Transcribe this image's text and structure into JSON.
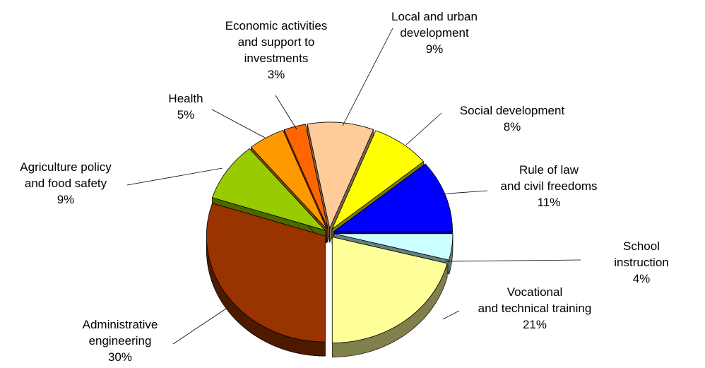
{
  "chart_data": {
    "type": "pie",
    "categories": [
      "School instruction",
      "Vocational\nand technical training",
      "Administrative\nengineering",
      "Agriculture policy\nand food safety",
      "Health",
      "Economic activities\nand support to\ninvestments",
      "Local and urban\ndevelopment",
      "Social development",
      "Rule of law\nand civil freedoms"
    ],
    "values": [
      4,
      21,
      30,
      9,
      5,
      3,
      9,
      8,
      11
    ],
    "value_labels": [
      "4%",
      "21%",
      "30%",
      "9%",
      "5%",
      "3%",
      "9%",
      "8%",
      "11%"
    ],
    "colors": [
      "#ccffff",
      "#ffff99",
      "#993300",
      "#99cc00",
      "#ff9900",
      "#ff6600",
      "#ffcc99",
      "#ffff00",
      "#0000ff"
    ]
  }
}
